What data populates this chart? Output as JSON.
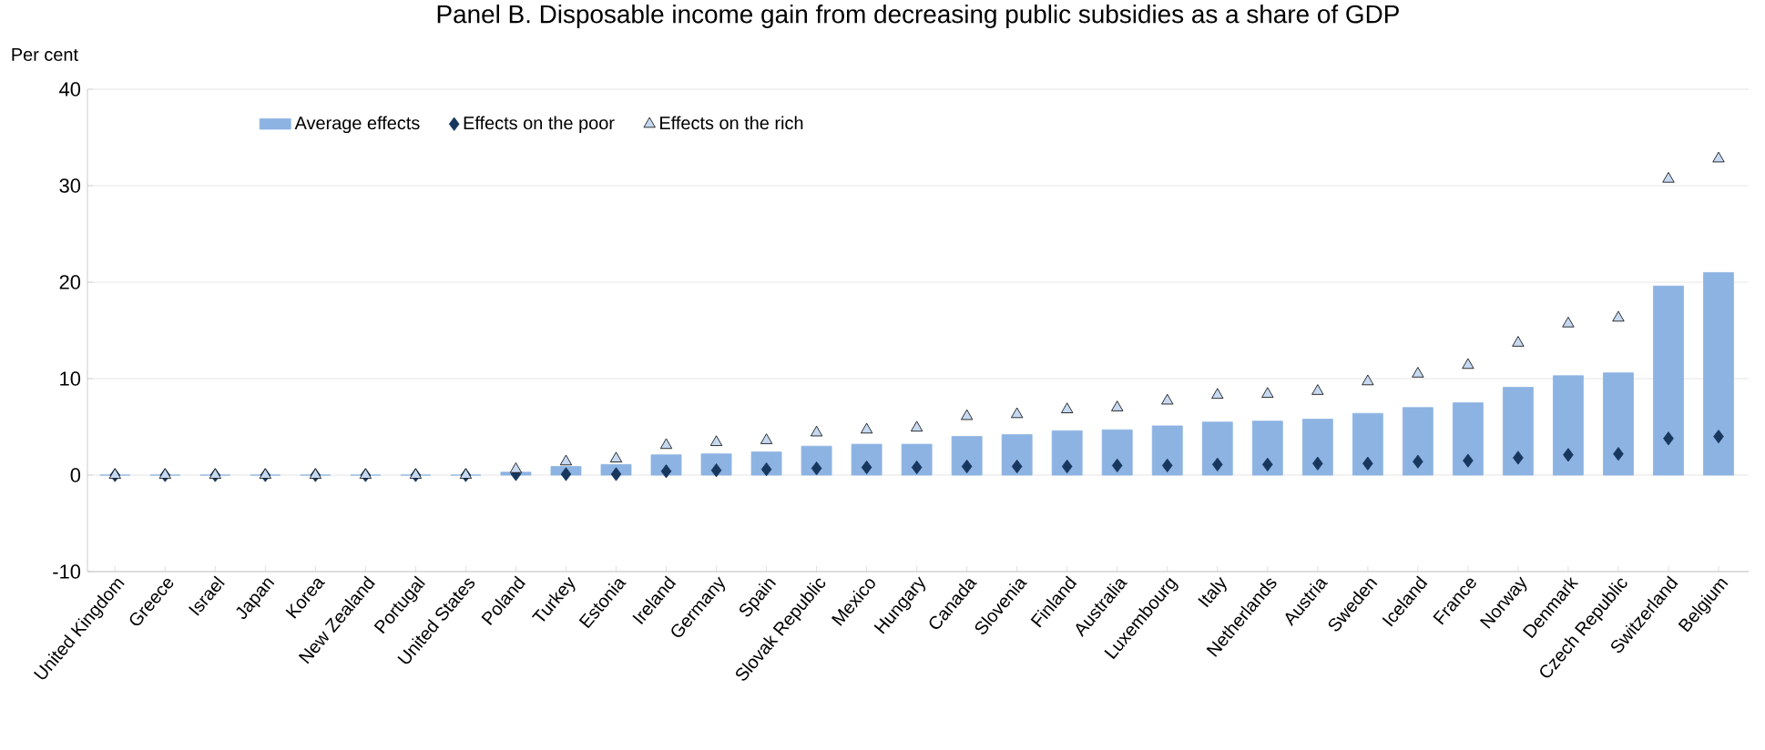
{
  "chart_data": {
    "type": "bar",
    "title": "Panel B. Disposable income gain from decreasing public subsidies as a share of GDP",
    "ylabel": "Per cent",
    "categories": [
      "United Kingdom",
      "Greece",
      "Israel",
      "Japan",
      "Korea",
      "New Zealand",
      "Portugal",
      "United States",
      "Poland",
      "Turkey",
      "Estonia",
      "Ireland",
      "Germany",
      "Spain",
      "Slovak Republic",
      "Mexico",
      "Hungary",
      "Canada",
      "Slovenia",
      "Finland",
      "Australia",
      "Luxembourg",
      "Italy",
      "Netherlands",
      "Austria",
      "Sweden",
      "Iceland",
      "France",
      "Norway",
      "Denmark",
      "Czech Republic",
      "Switzerland",
      "Belgium"
    ],
    "series": [
      {
        "name": "Average effects",
        "color": "#8db3e2",
        "values": [
          0,
          0,
          0,
          0,
          0,
          0,
          0,
          0,
          0.3,
          0.9,
          1.1,
          2.1,
          2.2,
          2.4,
          3.0,
          3.2,
          3.2,
          4.0,
          4.2,
          4.6,
          4.7,
          5.1,
          5.5,
          5.6,
          5.8,
          6.4,
          7.0,
          7.5,
          9.1,
          10.3,
          10.6,
          19.6,
          21.0
        ]
      },
      {
        "name": "Effects on the poor",
        "type": "scatter",
        "marker": "diamond",
        "color": "#17375e",
        "values": [
          0,
          0,
          0,
          0,
          0,
          0,
          0,
          0,
          0.1,
          0.1,
          0.1,
          0.4,
          0.5,
          0.6,
          0.7,
          0.8,
          0.8,
          0.9,
          0.9,
          0.9,
          1.0,
          1.0,
          1.1,
          1.1,
          1.2,
          1.2,
          1.4,
          1.5,
          1.8,
          2.1,
          2.2,
          3.8,
          4.0
        ]
      },
      {
        "name": "Effects on the rich",
        "type": "scatter",
        "marker": "triangle",
        "color": "#c6d9f1",
        "values": [
          0,
          0,
          0,
          0,
          0,
          0,
          0,
          0,
          0.6,
          1.4,
          1.7,
          3.1,
          3.4,
          3.6,
          4.4,
          4.7,
          4.9,
          6.1,
          6.3,
          6.8,
          7.0,
          7.7,
          8.3,
          8.4,
          8.7,
          9.7,
          10.5,
          11.4,
          13.7,
          15.7,
          16.3,
          30.7,
          32.8
        ]
      }
    ],
    "ylim": [
      -10,
      40
    ],
    "yticks": [
      -10,
      0,
      10,
      20,
      30,
      40
    ],
    "grid": "y",
    "legend": "top left"
  }
}
